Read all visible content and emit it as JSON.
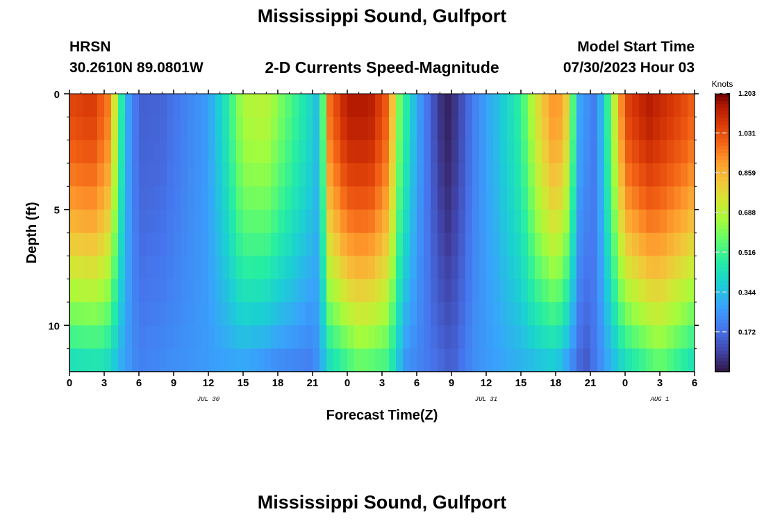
{
  "page": {
    "title": "Mississippi Sound, Gulfport",
    "title_repeat": "Mississippi Sound, Gulfport",
    "station_code": "HRSN",
    "station_coords": "30.2610N  89.0801W",
    "subtitle": "2-D Currents Speed-Magnitude",
    "model_start_label": "Model Start Time",
    "model_start_value": "07/30/2023 Hour 03"
  },
  "chart_data": {
    "type": "heatmap",
    "xlabel": "Forecast Time(Z)",
    "ylabel": "Depth (ft)",
    "xlim": [
      0,
      54
    ],
    "ylim": [
      0,
      12
    ],
    "x_ticks": [
      0,
      3,
      6,
      9,
      12,
      15,
      18,
      21,
      24,
      27,
      30,
      33,
      36,
      39,
      42,
      45,
      48,
      51,
      54
    ],
    "x_tick_labels": [
      "0",
      "3",
      "6",
      "9",
      "12",
      "15",
      "18",
      "21",
      "0",
      "3",
      "6",
      "9",
      "12",
      "15",
      "18",
      "21",
      "0",
      "3",
      "6"
    ],
    "y_ticks": [
      0,
      5,
      10
    ],
    "y_tick_labels": [
      "0",
      "5",
      "10"
    ],
    "date_labels": [
      {
        "x": 12,
        "text": "JUL 30"
      },
      {
        "x": 36,
        "text": "JUL 31"
      },
      {
        "x": 51,
        "text": "AUG 1"
      }
    ],
    "colorbar": {
      "unit": "Knots",
      "min": 0.0,
      "max": 1.2,
      "ticks": [
        0.172,
        0.344,
        0.516,
        0.688,
        0.859,
        1.031,
        1.203
      ],
      "tick_labels": [
        "0.172",
        "0.344",
        "0.516",
        "0.688",
        "0.859",
        "1.031",
        "1.203"
      ],
      "colormap": "turbo"
    },
    "columns": 90,
    "rows": 12,
    "x_step_hours": 0.6,
    "depth_step_ft": 1,
    "surface_speed_profile": [
      {
        "x": 0,
        "v": 1.05
      },
      {
        "x": 2,
        "v": 1.08
      },
      {
        "x": 3.5,
        "v": 0.95
      },
      {
        "x": 4.3,
        "v": 0.55
      },
      {
        "x": 5,
        "v": 0.3
      },
      {
        "x": 6,
        "v": 0.15
      },
      {
        "x": 8,
        "v": 0.16
      },
      {
        "x": 10,
        "v": 0.22
      },
      {
        "x": 12,
        "v": 0.28
      },
      {
        "x": 13.5,
        "v": 0.45
      },
      {
        "x": 15,
        "v": 0.68
      },
      {
        "x": 17,
        "v": 0.7
      },
      {
        "x": 19,
        "v": 0.55
      },
      {
        "x": 21,
        "v": 0.4
      },
      {
        "x": 21.7,
        "v": 0.3
      },
      {
        "x": 22.2,
        "v": 0.95
      },
      {
        "x": 24,
        "v": 1.15
      },
      {
        "x": 26,
        "v": 1.15
      },
      {
        "x": 27.5,
        "v": 1.0
      },
      {
        "x": 28.5,
        "v": 0.6
      },
      {
        "x": 30,
        "v": 0.3
      },
      {
        "x": 31.5,
        "v": 0.12
      },
      {
        "x": 32.5,
        "v": 0.02
      },
      {
        "x": 33.5,
        "v": 0.08
      },
      {
        "x": 35,
        "v": 0.22
      },
      {
        "x": 37,
        "v": 0.35
      },
      {
        "x": 39,
        "v": 0.5
      },
      {
        "x": 40.5,
        "v": 0.78
      },
      {
        "x": 42,
        "v": 0.95
      },
      {
        "x": 43,
        "v": 0.8
      },
      {
        "x": 44,
        "v": 0.3
      },
      {
        "x": 45.5,
        "v": 0.2
      },
      {
        "x": 46.5,
        "v": 0.5
      },
      {
        "x": 48,
        "v": 1.05
      },
      {
        "x": 50,
        "v": 1.15
      },
      {
        "x": 53,
        "v": 1.05
      },
      {
        "x": 54,
        "v": 1.0
      }
    ],
    "bottom_speed_profile": [
      {
        "x": 0,
        "v": 0.4
      },
      {
        "x": 3,
        "v": 0.42
      },
      {
        "x": 4.5,
        "v": 0.3
      },
      {
        "x": 6,
        "v": 0.22
      },
      {
        "x": 9,
        "v": 0.25
      },
      {
        "x": 13,
        "v": 0.28
      },
      {
        "x": 15,
        "v": 0.28
      },
      {
        "x": 18,
        "v": 0.22
      },
      {
        "x": 21,
        "v": 0.2
      },
      {
        "x": 22.5,
        "v": 0.4
      },
      {
        "x": 25,
        "v": 0.55
      },
      {
        "x": 27.5,
        "v": 0.5
      },
      {
        "x": 29,
        "v": 0.25
      },
      {
        "x": 31,
        "v": 0.2
      },
      {
        "x": 33,
        "v": 0.15
      },
      {
        "x": 35,
        "v": 0.25
      },
      {
        "x": 38,
        "v": 0.3
      },
      {
        "x": 42,
        "v": 0.35
      },
      {
        "x": 44.5,
        "v": 0.12
      },
      {
        "x": 46,
        "v": 0.25
      },
      {
        "x": 48,
        "v": 0.4
      },
      {
        "x": 51,
        "v": 0.55
      },
      {
        "x": 54,
        "v": 0.4
      }
    ]
  }
}
